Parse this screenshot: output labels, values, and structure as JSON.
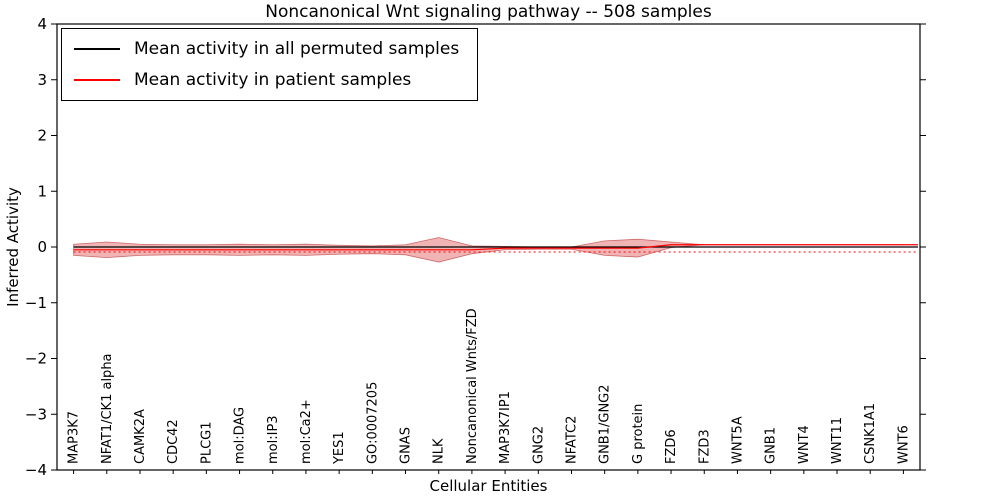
{
  "title": "Noncanonical Wnt signaling pathway -- 508 samples",
  "legend": {
    "entries": [
      {
        "label": "Mean activity in all permuted samples",
        "color": "#000000"
      },
      {
        "label": "Mean activity in patient samples",
        "color": "#ff0000"
      }
    ]
  },
  "chart_data": {
    "type": "line",
    "title": "Noncanonical Wnt signaling pathway -- 508 samples",
    "xlabel": "Cellular Entities",
    "ylabel": "Inferred Activity",
    "ylim": [
      -4,
      4
    ],
    "yticks": [
      -4,
      -3,
      -2,
      -1,
      0,
      1,
      2,
      3,
      4
    ],
    "ytick_labels": [
      "−4",
      "−3",
      "−2",
      "−1",
      "0",
      "1",
      "2",
      "3",
      "4"
    ],
    "grid": false,
    "legend_position": "upper left",
    "categories": [
      "MAP3K7",
      "NFAT1/CK1 alpha",
      "CAMK2A",
      "CDC42",
      "PLCG1",
      "mol:DAG",
      "mol:IP3",
      "mol:Ca2+",
      "YES1",
      "GO:0007205",
      "GNAS",
      "NLK",
      "Noncanonical Wnts/FZD",
      "MAP3K7IP1",
      "GNG2",
      "NFATC2",
      "GNB1/GNG2",
      "G protein",
      "FZD6",
      "FZD3",
      "WNT5A",
      "GNB1",
      "WNT4",
      "WNT11",
      "CSNK1A1",
      "WNT6"
    ],
    "series": [
      {
        "name": "Mean activity in all permuted samples",
        "color": "#000000",
        "values": [
          0,
          0,
          0,
          0,
          0,
          0,
          0,
          0,
          0,
          0,
          0,
          0,
          0,
          0,
          0,
          0,
          0,
          0,
          0,
          0,
          0,
          0,
          0,
          0,
          0,
          0
        ]
      },
      {
        "name": "Mean activity in patient samples",
        "color": "#ff0000",
        "values": [
          -0.05,
          -0.05,
          -0.05,
          -0.05,
          -0.05,
          -0.05,
          -0.05,
          -0.05,
          -0.05,
          -0.05,
          -0.05,
          -0.05,
          -0.05,
          -0.02,
          -0.02,
          -0.02,
          -0.02,
          -0.02,
          0.04,
          0.04,
          0.04,
          0.04,
          0.04,
          0.04,
          0.04,
          0.04
        ]
      }
    ],
    "violin_band": {
      "description": "red shaded spread of patient sample activity around the mean",
      "color": "#d62728",
      "edge_color": "#b22222",
      "alpha": 0.35,
      "halfwidths": [
        0.1,
        0.14,
        0.1,
        0.09,
        0.09,
        0.1,
        0.09,
        0.1,
        0.08,
        0.07,
        0.09,
        0.22,
        0.07,
        0.03,
        0.02,
        0.02,
        0.13,
        0.16,
        0.05,
        0,
        0,
        0,
        0,
        0,
        0,
        0
      ]
    },
    "dotted_line": {
      "color": "#ff0000",
      "value": -0.09,
      "style": "dotted"
    }
  }
}
